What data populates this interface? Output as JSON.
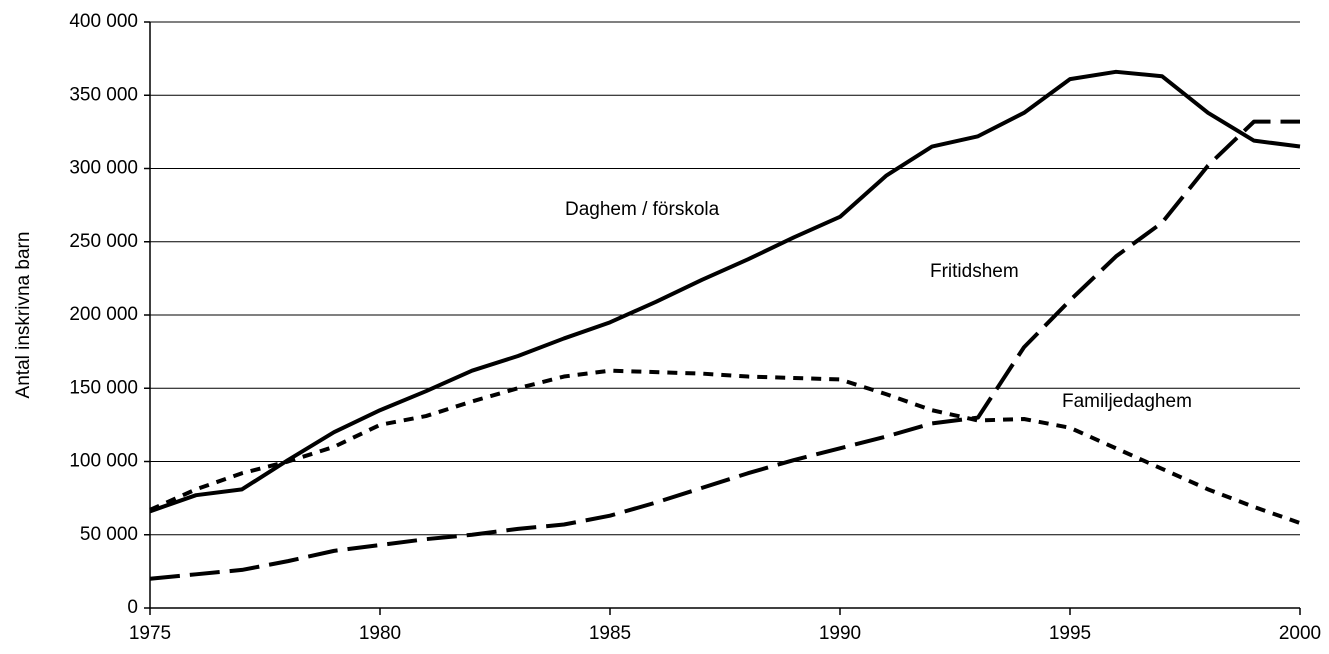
{
  "chart_data": {
    "type": "line",
    "y_label": "Antal inskrivna barn",
    "x": [
      1975,
      1976,
      1977,
      1978,
      1979,
      1980,
      1981,
      1982,
      1983,
      1984,
      1985,
      1986,
      1987,
      1988,
      1989,
      1990,
      1991,
      1992,
      1993,
      1994,
      1995,
      1996,
      1997,
      1998,
      1999,
      2000
    ],
    "series": [
      {
        "name": "Daghem / förskola",
        "color": "#000000",
        "dash": "solid",
        "values": [
          66000,
          77000,
          81000,
          101000,
          120000,
          135000,
          148000,
          162000,
          172000,
          184000,
          195000,
          209000,
          224000,
          238000,
          253000,
          267000,
          295000,
          315000,
          322000,
          338000,
          361000,
          366000,
          363000,
          338000,
          319000,
          315000
        ]
      },
      {
        "name": "Fritidshem",
        "color": "#000000",
        "dash": "long",
        "values": [
          20000,
          23000,
          26000,
          32000,
          39000,
          43000,
          47000,
          50000,
          54000,
          57000,
          63000,
          72000,
          82000,
          92000,
          101000,
          109000,
          117000,
          126000,
          130000,
          178000,
          210000,
          240000,
          263000,
          302000,
          332000,
          332000
        ]
      },
      {
        "name": "Familjedaghem",
        "color": "#000000",
        "dash": "short",
        "values": [
          67000,
          81000,
          92000,
          100000,
          110000,
          125000,
          131000,
          141000,
          150000,
          158000,
          162000,
          161000,
          160000,
          158000,
          157000,
          156000,
          146000,
          135000,
          128000,
          129000,
          123000,
          109000,
          95000,
          81000,
          69000,
          58000
        ]
      }
    ],
    "xlim": [
      1975,
      2000
    ],
    "xticks": [
      1975,
      1980,
      1985,
      1990,
      1995,
      2000
    ],
    "ylim": [
      0,
      400000
    ],
    "yticks": [
      0,
      {
        "value": 50000,
        "label": "50 000"
      },
      {
        "value": 100000,
        "label": "100 000"
      },
      {
        "value": 150000,
        "label": "150 000"
      },
      {
        "value": 200000,
        "label": "200 000"
      },
      {
        "value": 250000,
        "label": "250 000"
      },
      {
        "value": 300000,
        "label": "300 000"
      },
      {
        "value": 350000,
        "label": "350 000"
      },
      {
        "value": 400000,
        "label": "400 000"
      }
    ],
    "grid": true
  }
}
